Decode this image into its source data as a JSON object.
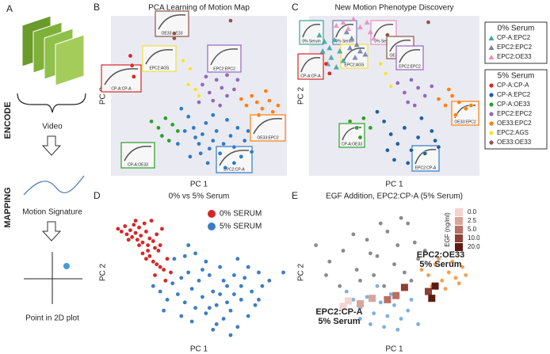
{
  "panel_a": {
    "label": "A",
    "video": "Video",
    "signature": "Motion Signature",
    "point": "Point in 2D plot",
    "encode": "ENCODE",
    "mapping": "MAPPING"
  },
  "chart_data": [
    {
      "type": "scatter",
      "panel_label": "B",
      "title": "PCA Learning of Motion Map",
      "x_label": "PC 1",
      "y_label": "PC 2",
      "xlim": [
        0,
        100
      ],
      "ylim": [
        0,
        100
      ],
      "background": "#eaeaf2",
      "series": [
        {
          "color": "#d62728",
          "marker": "circle",
          "x": [
            11,
            12,
            13
          ],
          "y": [
            75,
            69,
            62
          ]
        },
        {
          "color": "#8c564b",
          "marker": "circle",
          "x": [
            36,
            36,
            68
          ],
          "y": [
            89,
            86,
            97
          ]
        },
        {
          "color": "#f5e13a",
          "marker": "circle",
          "x": [
            41,
            45,
            44,
            48,
            50
          ],
          "y": [
            72,
            67,
            57,
            54,
            50
          ]
        },
        {
          "color": "#9467bd",
          "marker": "circle",
          "x": [
            52,
            56,
            60,
            63,
            66,
            70,
            58,
            62,
            50,
            54,
            72,
            66
          ],
          "y": [
            57,
            52,
            60,
            55,
            50,
            54,
            47,
            44,
            46,
            62,
            60,
            63
          ]
        },
        {
          "color": "#2ca02c",
          "marker": "circle",
          "x": [
            23,
            27,
            31,
            35,
            29,
            38,
            33
          ],
          "y": [
            34,
            30,
            36,
            32,
            25,
            28,
            22
          ]
        },
        {
          "color": "#2f7bc4",
          "marker": "circle",
          "x": [
            40,
            44,
            47,
            48,
            50,
            52,
            54,
            56,
            58,
            60,
            62,
            64,
            66,
            68,
            70,
            72,
            74,
            76,
            78,
            80,
            45,
            55,
            65,
            58,
            51,
            42,
            38,
            70
          ],
          "y": [
            42,
            37,
            30,
            24,
            20,
            26,
            33,
            17,
            22,
            28,
            14,
            20,
            35,
            25,
            18,
            30,
            12,
            22,
            28,
            15,
            12,
            8,
            5,
            38,
            14,
            28,
            20,
            8
          ]
        },
        {
          "color": "#ff7f0e",
          "marker": "circle",
          "x": [
            74,
            77,
            80,
            83,
            86,
            88,
            90,
            92,
            84,
            95
          ],
          "y": [
            48,
            44,
            50,
            46,
            42,
            53,
            47,
            40,
            38,
            44
          ]
        }
      ],
      "insets": [
        {
          "text": "CP-A:CP-A",
          "color": "#d62728"
        },
        {
          "text": "OE33:OE33",
          "color": "#8c564b"
        },
        {
          "text": "EPC2:AGS",
          "color": "#f5e13a"
        },
        {
          "text": "EPC2:EPC2",
          "color": "#9467bd"
        },
        {
          "text": "OE33:EPC2",
          "color": "#ff7f0e"
        },
        {
          "text": "CP-A:OE33",
          "color": "#2ca02c"
        },
        {
          "text": "EPC2:CP-A",
          "color": "#2f7bc4"
        }
      ]
    },
    {
      "type": "scatter",
      "panel_label": "C",
      "title": "New Motion Phenotype Discovery",
      "x_label": "PC 1",
      "y_label": "PC 2",
      "xlim": [
        0,
        100
      ],
      "ylim": [
        0,
        100
      ],
      "background": "#eaeaf2",
      "legend_titles": [
        "0% Serum",
        "5% Serum"
      ],
      "series": [
        {
          "name": "CP-A:EPC2",
          "color": "#3aa6a0",
          "marker": "triangle",
          "x": [
            6,
            9,
            12,
            15,
            8,
            13,
            18,
            11,
            20,
            16
          ],
          "y": [
            88,
            84,
            80,
            85,
            78,
            74,
            78,
            70,
            72,
            68
          ]
        },
        {
          "name": "EPC2:EPC2",
          "color": "#6f7fb0",
          "marker": "triangle",
          "x": [
            22,
            25,
            28,
            24,
            30,
            27,
            33
          ],
          "y": [
            90,
            86,
            82,
            80,
            78,
            74,
            76
          ]
        },
        {
          "name": "EPC2:OE33",
          "color": "#e58fc0",
          "marker": "triangle",
          "x": [
            16,
            20,
            23,
            26,
            30,
            34,
            36,
            38
          ],
          "y": [
            94,
            96,
            92,
            98,
            93,
            96,
            90,
            86
          ]
        },
        {
          "name": "CP-A:CP-A",
          "color": "#d62728",
          "marker": "circle",
          "x": [
            10,
            12
          ],
          "y": [
            70,
            64
          ]
        },
        {
          "name": "CP-A:EPC2",
          "color": "#1f5fa0",
          "marker": "circle",
          "x": [
            40,
            44,
            48,
            52,
            56,
            60,
            64,
            68,
            72,
            76,
            50,
            58,
            66,
            74,
            46
          ],
          "y": [
            40,
            34,
            26,
            20,
            30,
            16,
            24,
            14,
            28,
            18,
            10,
            8,
            36,
            22,
            16
          ]
        },
        {
          "name": "CP-A:OE33",
          "color": "#2ca02c",
          "marker": "circle",
          "x": [
            24,
            28,
            32,
            36,
            30
          ],
          "y": [
            34,
            30,
            36,
            30,
            24
          ]
        },
        {
          "name": "EPC2:EPC2",
          "color": "#9467bd",
          "marker": "circle",
          "x": [
            52,
            56,
            60,
            64,
            68,
            72,
            58,
            62
          ],
          "y": [
            58,
            52,
            60,
            55,
            50,
            56,
            46,
            44
          ]
        },
        {
          "name": "OE33:EPC2",
          "color": "#ff7f0e",
          "marker": "circle",
          "x": [
            76,
            80,
            84,
            88,
            92,
            86,
            95,
            82
          ],
          "y": [
            48,
            44,
            50,
            46,
            42,
            38,
            44,
            54
          ]
        },
        {
          "name": "EPC2:AGS",
          "color": "#f5e13a",
          "marker": "circle",
          "x": [
            42,
            45,
            48
          ],
          "y": [
            70,
            64,
            56
          ]
        },
        {
          "name": "OE33:OE33",
          "color": "#8c564b",
          "marker": "circle",
          "x": [
            46,
            70
          ],
          "y": [
            88,
            96
          ]
        }
      ],
      "insets": [
        {
          "text": "0% Serum",
          "color": "#3aa6a0"
        },
        {
          "text": "0% Serum",
          "color": "#6f7fb0"
        },
        {
          "text": "0% Serum",
          "color": "#e58fc0"
        },
        {
          "text": "CP-A:CP-A",
          "color": "#d62728"
        },
        {
          "text": "OE33:OE33",
          "color": "#8c564b"
        },
        {
          "text": "EPC2:AGS",
          "color": "#f5e13a"
        },
        {
          "text": "EPC2:EPC2",
          "color": "#9467bd"
        },
        {
          "text": "OE33:EPC2",
          "color": "#ff7f0e"
        },
        {
          "text": "CP-A:OE33",
          "color": "#2ca02c"
        },
        {
          "text": "EPC2:CP-A",
          "color": "#2f7bc4"
        }
      ]
    },
    {
      "type": "scatter",
      "panel_label": "D",
      "title": "0% vs 5% Serum",
      "x_label": "PC 1",
      "y_label": "PC 2",
      "xlim": [
        0,
        100
      ],
      "ylim": [
        0,
        100
      ],
      "background": "#ffffff",
      "legend": "upper right",
      "series": [
        {
          "name": "0% SERUM",
          "color": "#d62728",
          "marker": "circle",
          "x": [
            4,
            6,
            8,
            9,
            11,
            12,
            13,
            14,
            15,
            16,
            17,
            18,
            19,
            20,
            21,
            22,
            23,
            24,
            25,
            26,
            27,
            28,
            18,
            20,
            22,
            24,
            26,
            28,
            30,
            32,
            34,
            16,
            14,
            10,
            29,
            31,
            25,
            21
          ],
          "y": [
            82,
            80,
            84,
            78,
            81,
            76,
            85,
            79,
            74,
            83,
            77,
            72,
            86,
            80,
            70,
            75,
            88,
            73,
            68,
            78,
            66,
            70,
            64,
            60,
            62,
            58,
            56,
            54,
            52,
            60,
            50,
            70,
            88,
            74,
            82,
            44,
            48,
            66
          ]
        },
        {
          "name": "5% SERUM",
          "color": "#3b7dc4",
          "marker": "circle",
          "x": [
            24,
            28,
            32,
            35,
            38,
            40,
            42,
            44,
            46,
            48,
            50,
            52,
            54,
            56,
            58,
            60,
            62,
            64,
            66,
            68,
            70,
            72,
            74,
            76,
            78,
            80,
            82,
            84,
            86,
            90,
            36,
            42,
            48,
            54,
            60,
            66,
            72,
            78,
            84,
            40,
            46,
            52,
            58,
            64,
            70,
            56,
            62,
            68,
            74,
            98,
            30,
            44
          ],
          "y": [
            40,
            36,
            30,
            42,
            34,
            46,
            28,
            50,
            38,
            24,
            44,
            32,
            20,
            48,
            36,
            26,
            54,
            16,
            40,
            22,
            34,
            10,
            30,
            46,
            18,
            36,
            26,
            50,
            40,
            44,
            60,
            62,
            64,
            58,
            12,
            28,
            60,
            54,
            30,
            18,
            14,
            52,
            8,
            44,
            48,
            24,
            34,
            4,
            40,
            50,
            22,
            70
          ]
        }
      ]
    },
    {
      "type": "scatter",
      "panel_label": "E",
      "title": "EGF Addition, EPC2:CP-A (5% Serum)",
      "x_label": "PC 1",
      "y_label": "PC 2",
      "xlim": [
        0,
        100
      ],
      "ylim": [
        0,
        100
      ],
      "background": "#ffffff",
      "series": [
        {
          "color": "#8a8a8a",
          "marker": "circle",
          "x": [
            4,
            12,
            20,
            28,
            34,
            40,
            46,
            52,
            58,
            64,
            30,
            38,
            44,
            50,
            56,
            62,
            68,
            18,
            24,
            10,
            36,
            48,
            60,
            42,
            54,
            26
          ],
          "y": [
            70,
            58,
            66,
            52,
            74,
            62,
            80,
            70,
            86,
            60,
            44,
            48,
            40,
            56,
            50,
            72,
            66,
            40,
            30,
            48,
            64,
            34,
            44,
            86,
            90,
            78
          ]
        },
        {
          "color": "#7fb0dc",
          "marker": "circle",
          "x": [
            22,
            26,
            30,
            34,
            38,
            42,
            46,
            50,
            54,
            58,
            36,
            44,
            52,
            30,
            40,
            48,
            60,
            64
          ],
          "y": [
            36,
            30,
            24,
            32,
            20,
            28,
            18,
            26,
            16,
            22,
            12,
            10,
            8,
            16,
            40,
            34,
            30,
            12
          ]
        },
        {
          "color": "#f5a04a",
          "marker": "circle",
          "x": [
            66,
            70,
            74,
            78,
            82,
            86,
            90,
            72,
            80,
            88,
            76,
            84,
            92
          ],
          "y": [
            52,
            48,
            56,
            44,
            50,
            46,
            54,
            40,
            38,
            42,
            60,
            58,
            48
          ]
        },
        {
          "color": "#f3d3cf",
          "marker": "square",
          "x": [
            23,
            20
          ],
          "y": [
            29,
            25
          ]
        },
        {
          "color": "#d9a49a",
          "marker": "square",
          "x": [
            37,
            30
          ],
          "y": [
            31,
            27
          ]
        },
        {
          "color": "#b86f64",
          "marker": "square",
          "x": [
            51,
            46
          ],
          "y": [
            33,
            30
          ]
        },
        {
          "color": "#8e3e33",
          "marker": "square",
          "x": [
            56,
            70
          ],
          "y": [
            39,
            36
          ]
        },
        {
          "color": "#5e1a12",
          "marker": "square",
          "x": [
            72,
            74
          ],
          "y": [
            31,
            40
          ]
        }
      ],
      "colorbar": {
        "title": "EGF (ng/ml)",
        "colors": [
          "#f3d3cf",
          "#d9a49a",
          "#b86f64",
          "#8e3e33",
          "#5e1a12"
        ],
        "ticks": [
          {
            "value": 0,
            "label": "0.0"
          },
          2.5,
          {
            "value": 5,
            "label": "5.0"
          },
          {
            "value": 10,
            "label": "10.0"
          },
          {
            "value": 20,
            "label": "20.0"
          }
        ]
      },
      "annotations": [
        {
          "text": "EPC2:OE33",
          "color": "#f08a1c"
        },
        {
          "text": "5% Serum",
          "color": "#f08a1c"
        },
        {
          "text": "EPC2:CP-A",
          "color": "#4d8cc8"
        },
        {
          "text": "5% Serum",
          "color": "#4d8cc8"
        }
      ]
    }
  ]
}
